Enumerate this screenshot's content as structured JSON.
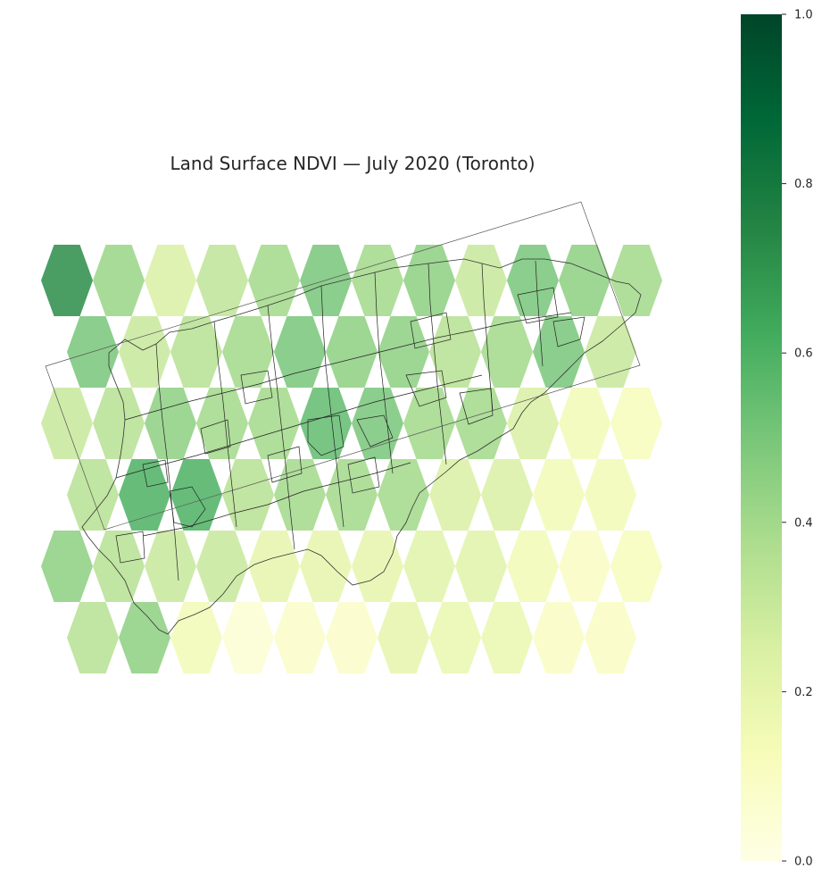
{
  "title": "Land Surface NDVI — July 2020 (Toronto)",
  "colorbar": {
    "colormap": "YlGn",
    "min": 0.0,
    "max": 1.0,
    "ticks": [
      {
        "value": 0.0,
        "label": "0.0"
      },
      {
        "value": 0.2,
        "label": "0.2"
      },
      {
        "value": 0.4,
        "label": "0.4"
      },
      {
        "value": 0.6,
        "label": "0.6"
      },
      {
        "value": 0.8,
        "label": "0.8"
      },
      {
        "value": 1.0,
        "label": "1.0"
      }
    ],
    "stops": [
      "#ffffe5",
      "#f7fcb9",
      "#d9f0a3",
      "#addd8e",
      "#78c679",
      "#41ab5d",
      "#238443",
      "#006837",
      "#004529"
    ]
  },
  "chart_data": {
    "type": "heatmap",
    "title": "Land Surface NDVI — July 2020 (Toronto)",
    "value_range": [
      0,
      1
    ],
    "hex_rows": [
      [
        0.72,
        0.42,
        0.25,
        0.33,
        0.4,
        0.5,
        0.4,
        0.45,
        0.3,
        0.5,
        0.45,
        0.4
      ],
      [
        0.5,
        0.3,
        0.35,
        0.4,
        0.5,
        0.45,
        0.45,
        0.35,
        0.4,
        0.5,
        0.3
      ],
      [
        0.3,
        0.35,
        0.45,
        0.4,
        0.4,
        0.55,
        0.5,
        0.4,
        0.4,
        0.25,
        0.15,
        0.12
      ],
      [
        0.35,
        0.6,
        0.6,
        0.35,
        0.4,
        0.4,
        0.4,
        0.25,
        0.25,
        0.15,
        0.15
      ],
      [
        0.45,
        0.35,
        0.3,
        0.3,
        0.2,
        0.2,
        0.2,
        0.22,
        0.22,
        0.15,
        0.1,
        0.12
      ],
      [
        0.35,
        0.45,
        0.15,
        0.05,
        0.08,
        0.08,
        0.2,
        0.18,
        0.18,
        0.1,
        0.1
      ]
    ]
  }
}
